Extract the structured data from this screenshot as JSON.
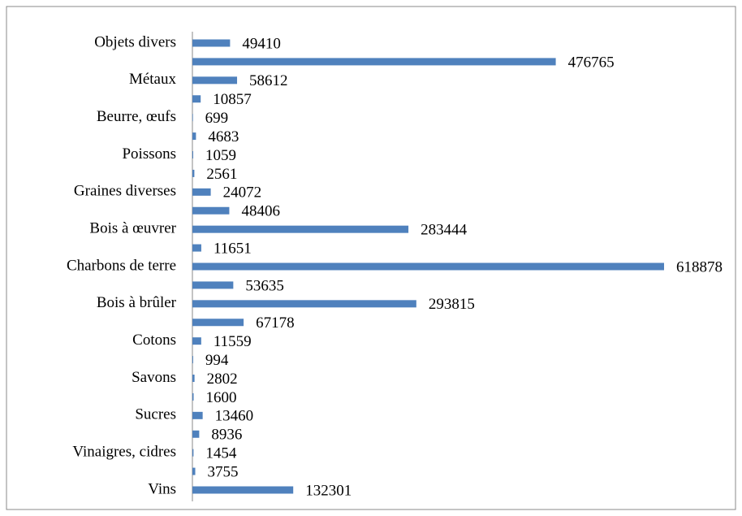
{
  "chart_data": {
    "type": "bar",
    "orientation": "horizontal",
    "color": "#4f81bd",
    "categories": [
      "Objets divers",
      null,
      "Métaux",
      null,
      "Beurre, œufs",
      null,
      "Poissons",
      null,
      "Graines diverses",
      null,
      "Bois à œuvrer",
      null,
      "Charbons de terre",
      null,
      "Bois à brûler",
      null,
      "Cotons",
      null,
      "Savons",
      null,
      "Sucres",
      null,
      "Vinaigres, cidres",
      null,
      "Vins"
    ],
    "values": [
      49410,
      476765,
      58612,
      10857,
      699,
      4683,
      1059,
      2561,
      24072,
      48406,
      283444,
      11651,
      618878,
      53635,
      293815,
      67178,
      11559,
      994,
      2802,
      1600,
      13460,
      8936,
      1454,
      3755,
      132301
    ]
  }
}
